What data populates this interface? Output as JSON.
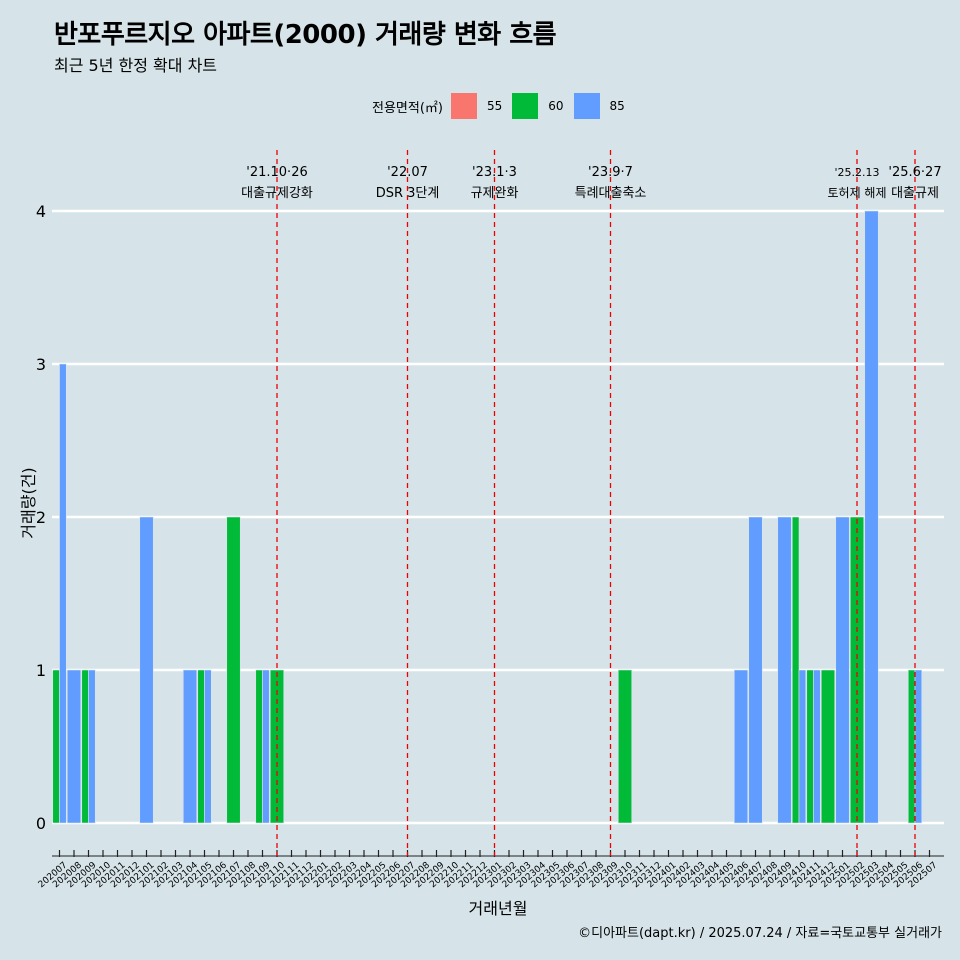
{
  "header": {
    "title": "반포푸르지오 아파트(2000) 거래량 변화 흐름",
    "subtitle": "최근 5년 한정 확대 차트"
  },
  "legend": {
    "title": "전용면적(㎡)",
    "items": [
      {
        "label": "55",
        "color": "#f8766d"
      },
      {
        "label": "60",
        "color": "#00ba38"
      },
      {
        "label": "85",
        "color": "#619cff"
      }
    ]
  },
  "caption": "©디아파트(dapt.kr) / 2025.07.24 / 자료=국토교통부 실거래가",
  "chart_data": {
    "type": "bar",
    "stacking": "dodge",
    "title": "반포푸르지오 아파트(2000) 거래량 변화 흐름",
    "xlabel": "거래년월",
    "ylabel": "거래량(건)",
    "ylim": [
      0,
      4
    ],
    "yticks": [
      0,
      1,
      2,
      3,
      4
    ],
    "legend_position": "top",
    "categories": [
      "202007",
      "202008",
      "202009",
      "202010",
      "202011",
      "202012",
      "202101",
      "202102",
      "202103",
      "202104",
      "202105",
      "202106",
      "202107",
      "202108",
      "202109",
      "202110",
      "202111",
      "202112",
      "202201",
      "202202",
      "202203",
      "202204",
      "202205",
      "202206",
      "202207",
      "202208",
      "202209",
      "202210",
      "202211",
      "202212",
      "202301",
      "202302",
      "202303",
      "202304",
      "202305",
      "202306",
      "202307",
      "202308",
      "202309",
      "202310",
      "202311",
      "202312",
      "202401",
      "202402",
      "202403",
      "202404",
      "202405",
      "202406",
      "202407",
      "202408",
      "202409",
      "202410",
      "202411",
      "202412",
      "202501",
      "202502",
      "202503",
      "202504",
      "202505",
      "202506",
      "202507"
    ],
    "series": [
      {
        "name": "55",
        "color": "#f8766d",
        "values": [
          0,
          0,
          0,
          0,
          0,
          0,
          0,
          0,
          0,
          0,
          0,
          0,
          0,
          0,
          0,
          0,
          0,
          0,
          0,
          0,
          0,
          0,
          0,
          0,
          0,
          0,
          0,
          0,
          0,
          0,
          0,
          0,
          0,
          0,
          0,
          0,
          0,
          0,
          0,
          0,
          0,
          0,
          0,
          0,
          0,
          0,
          0,
          0,
          0,
          0,
          0,
          0,
          0,
          0,
          0,
          0,
          0,
          0,
          0,
          0,
          0
        ]
      },
      {
        "name": "60",
        "color": "#00ba38",
        "values": [
          1,
          0,
          1,
          0,
          0,
          0,
          0,
          0,
          0,
          0,
          1,
          0,
          2,
          0,
          1,
          1,
          0,
          0,
          0,
          0,
          0,
          0,
          0,
          0,
          0,
          0,
          0,
          0,
          0,
          0,
          0,
          0,
          0,
          0,
          0,
          0,
          0,
          0,
          0,
          1,
          0,
          0,
          0,
          0,
          0,
          0,
          0,
          0,
          0,
          0,
          0,
          2,
          1,
          1,
          0,
          2,
          0,
          0,
          0,
          1,
          0
        ]
      },
      {
        "name": "85",
        "color": "#619cff",
        "values": [
          3,
          1,
          1,
          0,
          0,
          0,
          2,
          0,
          0,
          1,
          1,
          0,
          0,
          0,
          1,
          0,
          0,
          0,
          0,
          0,
          0,
          0,
          0,
          0,
          0,
          0,
          0,
          0,
          0,
          0,
          0,
          0,
          0,
          0,
          0,
          0,
          0,
          0,
          0,
          0,
          0,
          0,
          0,
          0,
          0,
          0,
          0,
          1,
          2,
          0,
          2,
          1,
          1,
          0,
          2,
          0,
          4,
          0,
          0,
          1,
          0
        ]
      }
    ],
    "annotations": [
      {
        "date": "'21.10·26",
        "label": "대출규제강화",
        "x": "202110"
      },
      {
        "date": "'22.07",
        "label": "DSR 3단계",
        "x": "202207"
      },
      {
        "date": "'23.1·3",
        "label": "규제완화",
        "x": "202301"
      },
      {
        "date": "'23.9·7",
        "label": "특례대출축소",
        "x": "202309"
      },
      {
        "date": "'25.2.13",
        "label": "토허제 해제",
        "x": "202502"
      },
      {
        "date": "'25.6·27",
        "label": "대출규제",
        "x": "202506"
      }
    ]
  }
}
